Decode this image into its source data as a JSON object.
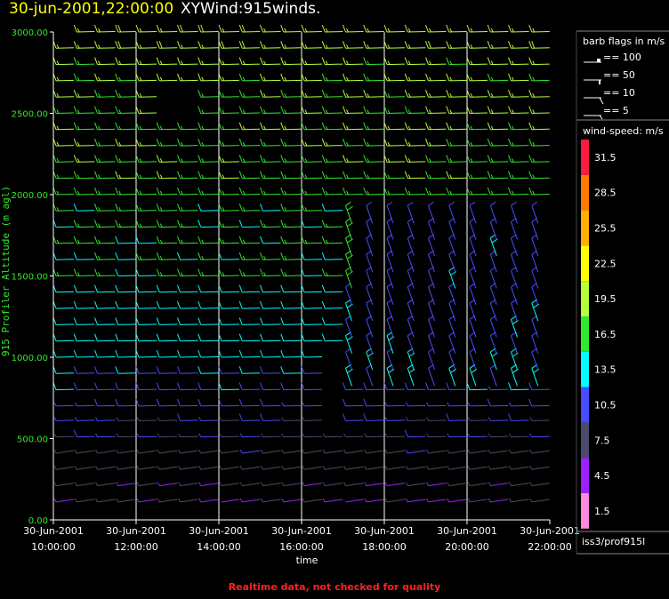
{
  "header": {
    "datetime": "30-jun-2001,22:00:00",
    "plot_name": "XYWind:915winds."
  },
  "legend": {
    "barb_title": "barb flags in m/s",
    "barbs": [
      {
        "label": "== 100",
        "kind": "pennant"
      },
      {
        "label": "== 50",
        "kind": "flag"
      },
      {
        "label": "== 10",
        "kind": "full"
      },
      {
        "label": "== 5",
        "kind": "half"
      }
    ],
    "speed_title": "wind-speed: m/s",
    "colorbar": [
      {
        "label": "31.5",
        "color": "#ff1a40"
      },
      {
        "label": "28.5",
        "color": "#ff7a00"
      },
      {
        "label": "25.5",
        "color": "#ffb000"
      },
      {
        "label": "22.5",
        "color": "#ffff00"
      },
      {
        "label": "19.5",
        "color": "#b6ff3a"
      },
      {
        "label": "16.5",
        "color": "#33e62e"
      },
      {
        "label": "13.5",
        "color": "#00ffff"
      },
      {
        "label": "10.5",
        "color": "#4a4aff"
      },
      {
        "label": "7.5",
        "color": "#4b4b6b"
      },
      {
        "label": "4.5",
        "color": "#9a22ff"
      },
      {
        "label": "1.5",
        "color": "#ff88dd"
      }
    ],
    "source": "iss3/prof915l"
  },
  "footer": "Realtime data, not checked for quality",
  "chart_data": {
    "type": "scatter",
    "variant": "wind-barbs",
    "title": "XYWind:915winds.",
    "xlabel": "time",
    "ylabel": "915 Profiler Altitude (m agl)",
    "xlim": [
      "30-Jun-2001 10:00:00",
      "30-Jun-2001 22:00:00"
    ],
    "ylim": [
      0,
      3000
    ],
    "x_ticks": [
      {
        "date": "30-Jun-2001",
        "time": "10:00:00",
        "hour": 10
      },
      {
        "date": "30-Jun-2001",
        "time": "12:00:00",
        "hour": 12
      },
      {
        "date": "30-Jun-2001",
        "time": "14:00:00",
        "hour": 14
      },
      {
        "date": "30-Jun-2001",
        "time": "16:00:00",
        "hour": 16
      },
      {
        "date": "30-Jun-2001",
        "time": "18:00:00",
        "hour": 18
      },
      {
        "date": "30-Jun-2001",
        "time": "20:00:00",
        "hour": 20
      },
      {
        "date": "30-Jun-2001",
        "time": "22:00:00",
        "hour": 22
      }
    ],
    "y_ticks": [
      {
        "label": "0.00",
        "value": 0
      },
      {
        "label": "500.00",
        "value": 500
      },
      {
        "label": "1000.00",
        "value": 1000
      },
      {
        "label": "1500.00",
        "value": 1500
      },
      {
        "label": "2000.00",
        "value": 2000
      },
      {
        "label": "2500.00",
        "value": 2500
      },
      {
        "label": "3000.00",
        "value": 3000
      }
    ],
    "grid": "vertical",
    "legend_placement": "right",
    "profile_times_hr": [
      10.0,
      10.5,
      11.0,
      11.5,
      12.0,
      12.5,
      13.0,
      13.5,
      14.0,
      14.5,
      15.0,
      15.5,
      16.0,
      16.5,
      17.0,
      17.5,
      18.0,
      18.5,
      19.0,
      19.5,
      20.0,
      20.5,
      21.0,
      21.5
    ],
    "profile_altitudes_m": [
      110,
      210,
      310,
      410,
      510,
      610,
      700,
      800,
      900,
      1000,
      1100,
      1200,
      1300,
      1400,
      1500,
      1600,
      1700,
      1800,
      1900,
      2000,
      2100,
      2200,
      2300,
      2400,
      2500,
      2600,
      2700,
      2800,
      2900,
      3000
    ],
    "wind_speed_field": {
      "description": "Approximate wind speed (m/s) bands read from barb colors",
      "below_500m": "4-9",
      "500_1000m": "8-13",
      "1000_1500m": "12-15 (10-12 after 17:00)",
      "1500_2000m": "14-17 (10-12 after 17:30)",
      "2000_3000m": "16-20"
    },
    "wind_direction_typical": "westerly to north-westerly"
  }
}
